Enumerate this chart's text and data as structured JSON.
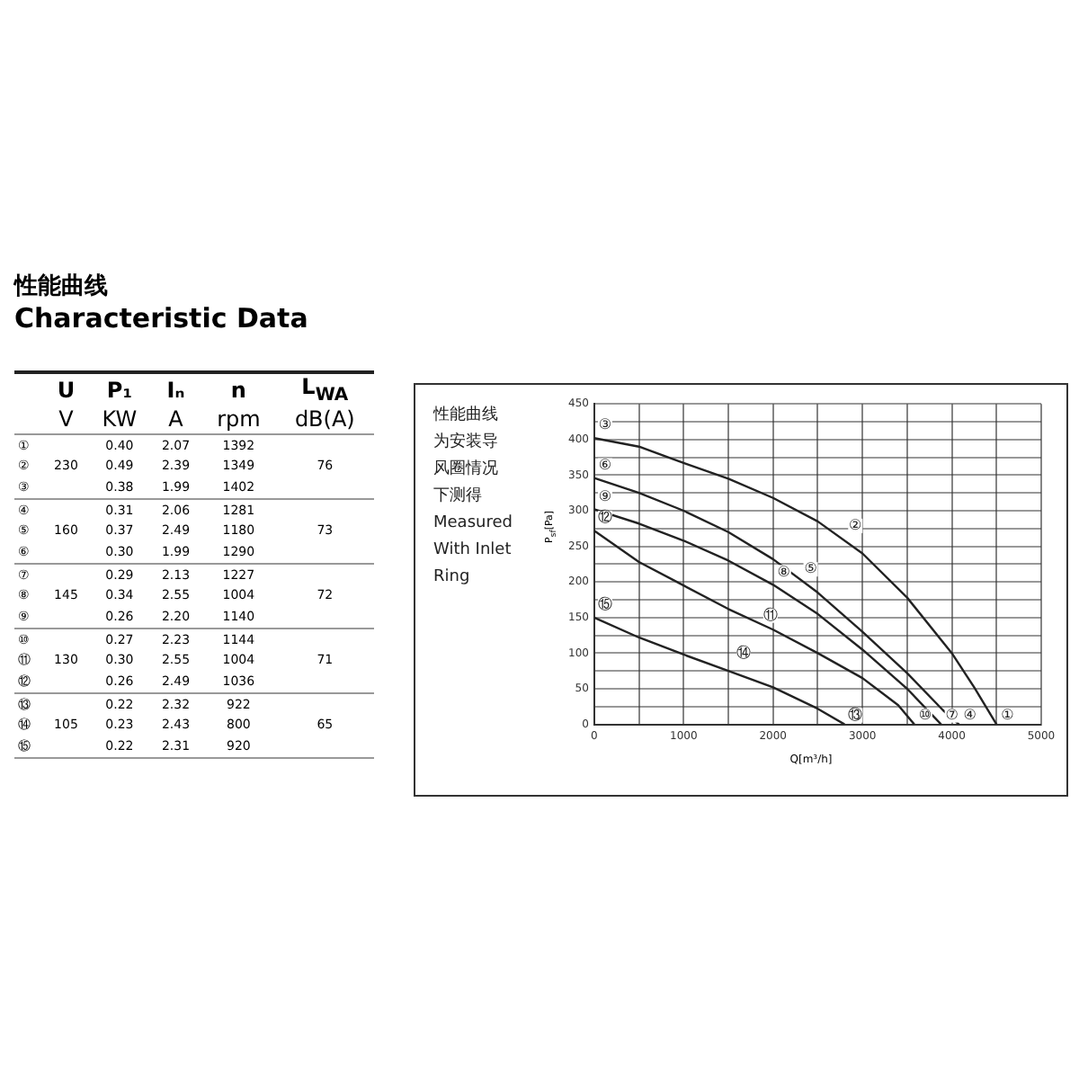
{
  "chart_data": [
    {
      "type": "other",
      "title": "性能曲线",
      "subtitle": "Characteristic Data",
      "categories": [
        "U",
        "P₁",
        "Iₙ",
        "n",
        "L$_{WA}$"
      ],
      "annotations": [
        "V",
        "KW",
        "A",
        "rpm",
        "dB(A)"
      ],
      "y_categories": [
        "①",
        "②",
        "③",
        "④",
        "⑤",
        "⑥",
        "⑦",
        "⑧",
        "⑨",
        "⑩",
        "⑪",
        "⑫",
        "⑬",
        "⑭",
        "⑮"
      ],
      "cell_labels": [
        [
          null,
          "0.40",
          "2.07",
          "1392",
          null
        ],
        [
          "230",
          "0.49",
          "2.39",
          "1349",
          "76"
        ],
        [
          null,
          "0.38",
          "1.99",
          "1402",
          null
        ],
        [
          null,
          "0.31",
          "2.06",
          "1281",
          null
        ],
        [
          "160",
          "0.37",
          "2.49",
          "1180",
          "73"
        ],
        [
          null,
          "0.30",
          "1.99",
          "1290",
          null
        ],
        [
          null,
          "0.29",
          "2.13",
          "1227",
          null
        ],
        [
          "145",
          "0.34",
          "2.55",
          "1004",
          "72"
        ],
        [
          null,
          "0.26",
          "2.20",
          "1140",
          null
        ],
        [
          null,
          "0.27",
          "2.23",
          "1144",
          null
        ],
        [
          "130",
          "0.30",
          "2.55",
          "1004",
          "71"
        ],
        [
          null,
          "0.26",
          "2.49",
          "1036",
          null
        ],
        [
          null,
          "0.22",
          "2.32",
          "922",
          null
        ],
        [
          "105",
          "0.23",
          "2.43",
          "800",
          "65"
        ],
        [
          null,
          "0.22",
          "2.31",
          "920",
          null
        ]
      ]
    },
    {
      "type": "line",
      "xlabel": "Q[m³/h]",
      "ylabel": "P$_{sf}$[Pa]",
      "xlim": [
        0,
        5000
      ],
      "ylim": [
        0,
        450
      ],
      "xticks": [
        0,
        {
          "value": 500,
          "label": null
        },
        1000,
        {
          "value": 1500,
          "label": null
        },
        2000,
        {
          "value": 2500,
          "label": null
        },
        3000,
        {
          "value": 3500,
          "label": null
        },
        4000,
        {
          "value": 4500,
          "label": null
        },
        5000
      ],
      "yticks": [
        0,
        {
          "value": 25,
          "label": null
        },
        50,
        {
          "value": 75,
          "label": null
        },
        100,
        {
          "value": 125,
          "label": null
        },
        150,
        {
          "value": 175,
          "label": null
        },
        200,
        {
          "value": 225,
          "label": null
        },
        250,
        {
          "value": 275,
          "label": null
        },
        300,
        {
          "value": 325,
          "label": null
        },
        350,
        {
          "value": 375,
          "label": null
        },
        400,
        {
          "value": 425,
          "label": null
        },
        450
      ],
      "grid": true,
      "legend": false,
      "marker": "none",
      "line_style": "solid",
      "series": [
        {
          "color": "#222222",
          "x": [
            0,
            500,
            1000,
            1500,
            2000,
            2500,
            3000,
            3500,
            4000,
            4250,
            4500
          ],
          "values": [
            402,
            390,
            367,
            345,
            318,
            285,
            240,
            178,
            100,
            52,
            0
          ]
        },
        {
          "color": "#222222",
          "x": [
            0,
            500,
            1000,
            1500,
            2000,
            2500,
            3000,
            3500,
            3900,
            4080
          ],
          "values": [
            346,
            325,
            300,
            270,
            232,
            185,
            130,
            72,
            20,
            0
          ]
        },
        {
          "color": "#222222",
          "x": [
            0,
            500,
            1000,
            1500,
            2000,
            2500,
            3000,
            3500,
            3880
          ],
          "values": [
            302,
            282,
            258,
            230,
            196,
            155,
            105,
            50,
            0
          ]
        },
        {
          "color": "#222222",
          "x": [
            0,
            500,
            1000,
            1500,
            2000,
            2500,
            3000,
            3400,
            3580
          ],
          "values": [
            272,
            228,
            195,
            162,
            133,
            100,
            65,
            27,
            0
          ]
        },
        {
          "color": "#222222",
          "x": [
            0,
            500,
            1000,
            1500,
            2000,
            2500,
            2800
          ],
          "values": [
            150,
            122,
            98,
            75,
            52,
            22,
            0
          ]
        }
      ],
      "annotations": [
        "性能曲线",
        "为安装导",
        "风圈情况",
        "下测得",
        "Measured",
        "With Inlet",
        "Ring",
        {
          "text": "①",
          "x": 4500,
          "y": 0
        },
        {
          "text": "②",
          "x": 2800,
          "y": 261
        },
        {
          "text": "③",
          "x": 0,
          "y": 402
        },
        {
          "text": "④",
          "x": 4080,
          "y": 0
        },
        {
          "text": "⑤",
          "x": 2300,
          "y": 200
        },
        {
          "text": "⑥",
          "x": 0,
          "y": 346
        },
        {
          "text": "⑦",
          "x": 3880,
          "y": 0
        },
        {
          "text": "⑧",
          "x": 2000,
          "y": 196
        },
        {
          "text": "⑨",
          "x": 0,
          "y": 302
        },
        {
          "text": "⑩",
          "x": 3580,
          "y": 0
        },
        {
          "text": "⑪",
          "x": 1850,
          "y": 135
        },
        {
          "text": "⑫",
          "x": 0,
          "y": 272
        },
        {
          "text": "⑬",
          "x": 2800,
          "y": 0
        },
        {
          "text": "⑭",
          "x": 1550,
          "y": 82
        },
        {
          "text": "⑮",
          "x": 0,
          "y": 150
        }
      ]
    }
  ]
}
